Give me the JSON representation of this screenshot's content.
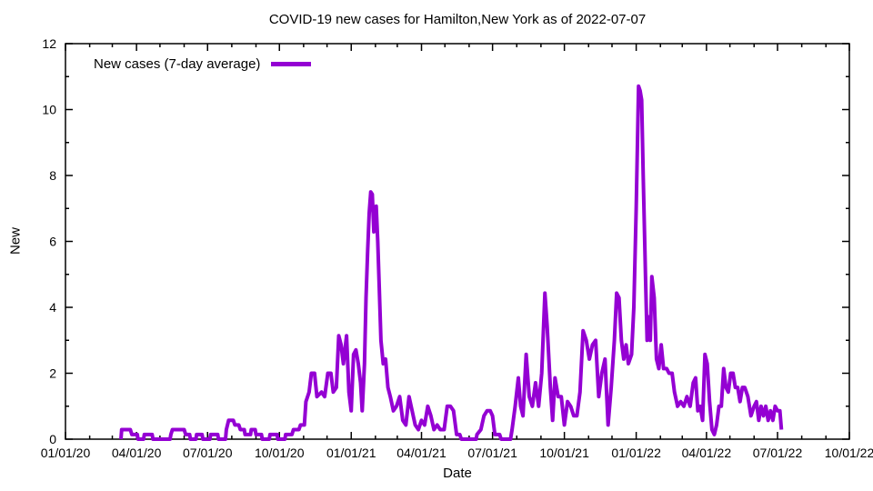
{
  "chart_data": {
    "type": "line",
    "title": "COVID-19 new cases for Hamilton,New York as of 2022-07-07",
    "xlabel": "Date",
    "ylabel": "New",
    "xlim": [
      "2020-01-01",
      "2022-10-01"
    ],
    "ylim": [
      0,
      12
    ],
    "grid": false,
    "legend_position": "top-left-inside",
    "border_color": "#000000",
    "x_ticks": [
      {
        "date": "2020-01-01",
        "label": "01/01/20"
      },
      {
        "date": "2020-04-01",
        "label": "04/01/20"
      },
      {
        "date": "2020-07-01",
        "label": "07/01/20"
      },
      {
        "date": "2020-10-01",
        "label": "10/01/20"
      },
      {
        "date": "2021-01-01",
        "label": "01/01/21"
      },
      {
        "date": "2021-04-01",
        "label": "04/01/21"
      },
      {
        "date": "2021-07-01",
        "label": "07/01/21"
      },
      {
        "date": "2021-10-01",
        "label": "10/01/21"
      },
      {
        "date": "2022-01-01",
        "label": "01/01/22"
      },
      {
        "date": "2022-04-01",
        "label": "04/01/22"
      },
      {
        "date": "2022-07-01",
        "label": "07/01/22"
      },
      {
        "date": "2022-10-01",
        "label": "10/01/22"
      }
    ],
    "y_ticks": [
      {
        "value": 0,
        "label": "0"
      },
      {
        "value": 2,
        "label": "2"
      },
      {
        "value": 4,
        "label": "4"
      },
      {
        "value": 6,
        "label": "6"
      },
      {
        "value": 8,
        "label": "8"
      },
      {
        "value": 10,
        "label": "10"
      },
      {
        "value": 12,
        "label": "12"
      }
    ],
    "y_minor_ticks": [
      1,
      3,
      5,
      7,
      9,
      11
    ],
    "series": [
      {
        "name": "New cases (7-day average)",
        "color": "#9400D3",
        "line_width": 4,
        "points": [
          [
            "2020-03-12",
            0
          ],
          [
            "2020-03-13",
            0.29
          ],
          [
            "2020-03-24",
            0.29
          ],
          [
            "2020-03-26",
            0.14
          ],
          [
            "2020-04-02",
            0.14
          ],
          [
            "2020-04-03",
            0
          ],
          [
            "2020-04-10",
            0
          ],
          [
            "2020-04-11",
            0.14
          ],
          [
            "2020-04-21",
            0.14
          ],
          [
            "2020-04-22",
            0
          ],
          [
            "2020-05-14",
            0
          ],
          [
            "2020-05-15",
            0.14
          ],
          [
            "2020-05-17",
            0.29
          ],
          [
            "2020-06-01",
            0.29
          ],
          [
            "2020-06-03",
            0.14
          ],
          [
            "2020-06-08",
            0.14
          ],
          [
            "2020-06-09",
            0
          ],
          [
            "2020-06-16",
            0
          ],
          [
            "2020-06-17",
            0.14
          ],
          [
            "2020-06-24",
            0.14
          ],
          [
            "2020-06-25",
            0
          ],
          [
            "2020-07-04",
            0
          ],
          [
            "2020-07-05",
            0.14
          ],
          [
            "2020-07-14",
            0.14
          ],
          [
            "2020-07-15",
            0
          ],
          [
            "2020-07-24",
            0
          ],
          [
            "2020-07-25",
            0.29
          ],
          [
            "2020-07-28",
            0.57
          ],
          [
            "2020-08-03",
            0.57
          ],
          [
            "2020-08-05",
            0.43
          ],
          [
            "2020-08-10",
            0.43
          ],
          [
            "2020-08-12",
            0.29
          ],
          [
            "2020-08-17",
            0.29
          ],
          [
            "2020-08-18",
            0.14
          ],
          [
            "2020-08-25",
            0.14
          ],
          [
            "2020-08-26",
            0.29
          ],
          [
            "2020-08-31",
            0.29
          ],
          [
            "2020-09-01",
            0.14
          ],
          [
            "2020-09-08",
            0.14
          ],
          [
            "2020-09-09",
            0
          ],
          [
            "2020-09-18",
            0
          ],
          [
            "2020-09-19",
            0.14
          ],
          [
            "2020-09-28",
            0.14
          ],
          [
            "2020-09-29",
            0
          ],
          [
            "2020-10-08",
            0
          ],
          [
            "2020-10-09",
            0.14
          ],
          [
            "2020-10-17",
            0.14
          ],
          [
            "2020-10-19",
            0.29
          ],
          [
            "2020-10-26",
            0.29
          ],
          [
            "2020-10-28",
            0.43
          ],
          [
            "2020-11-02",
            0.43
          ],
          [
            "2020-11-04",
            1.14
          ],
          [
            "2020-11-08",
            1.43
          ],
          [
            "2020-11-11",
            2.0
          ],
          [
            "2020-11-15",
            2.0
          ],
          [
            "2020-11-18",
            1.29
          ],
          [
            "2020-11-24",
            1.43
          ],
          [
            "2020-11-28",
            1.29
          ],
          [
            "2020-12-02",
            2.0
          ],
          [
            "2020-12-06",
            2.0
          ],
          [
            "2020-12-09",
            1.43
          ],
          [
            "2020-12-13",
            1.57
          ],
          [
            "2020-12-16",
            3.14
          ],
          [
            "2020-12-19",
            2.86
          ],
          [
            "2020-12-22",
            2.29
          ],
          [
            "2020-12-26",
            3.14
          ],
          [
            "2020-12-29",
            1.43
          ],
          [
            "2021-01-01",
            0.86
          ],
          [
            "2021-01-04",
            2.57
          ],
          [
            "2021-01-07",
            2.71
          ],
          [
            "2021-01-10",
            2.29
          ],
          [
            "2021-01-13",
            1.71
          ],
          [
            "2021-01-15",
            0.86
          ],
          [
            "2021-01-18",
            2.29
          ],
          [
            "2021-01-20",
            4.29
          ],
          [
            "2021-01-22",
            5.71
          ],
          [
            "2021-01-24",
            6.86
          ],
          [
            "2021-01-26",
            7.5
          ],
          [
            "2021-01-28",
            7.43
          ],
          [
            "2021-01-30",
            6.29
          ],
          [
            "2021-02-02",
            7.07
          ],
          [
            "2021-02-04",
            6.0
          ],
          [
            "2021-02-06",
            4.57
          ],
          [
            "2021-02-08",
            3.0
          ],
          [
            "2021-02-11",
            2.29
          ],
          [
            "2021-02-14",
            2.43
          ],
          [
            "2021-02-17",
            1.57
          ],
          [
            "2021-02-20",
            1.29
          ],
          [
            "2021-02-24",
            0.86
          ],
          [
            "2021-02-28",
            1.0
          ],
          [
            "2021-03-04",
            1.29
          ],
          [
            "2021-03-08",
            0.57
          ],
          [
            "2021-03-12",
            0.43
          ],
          [
            "2021-03-16",
            1.29
          ],
          [
            "2021-03-20",
            0.86
          ],
          [
            "2021-03-24",
            0.43
          ],
          [
            "2021-03-28",
            0.29
          ],
          [
            "2021-04-01",
            0.57
          ],
          [
            "2021-04-05",
            0.43
          ],
          [
            "2021-04-09",
            1.0
          ],
          [
            "2021-04-13",
            0.71
          ],
          [
            "2021-04-17",
            0.29
          ],
          [
            "2021-04-21",
            0.43
          ],
          [
            "2021-04-25",
            0.29
          ],
          [
            "2021-04-30",
            0.29
          ],
          [
            "2021-05-04",
            1.0
          ],
          [
            "2021-05-08",
            1.0
          ],
          [
            "2021-05-12",
            0.86
          ],
          [
            "2021-05-16",
            0.14
          ],
          [
            "2021-05-20",
            0.14
          ],
          [
            "2021-05-22",
            0
          ],
          [
            "2021-06-10",
            0
          ],
          [
            "2021-06-11",
            0.14
          ],
          [
            "2021-06-16",
            0.29
          ],
          [
            "2021-06-20",
            0.71
          ],
          [
            "2021-06-24",
            0.86
          ],
          [
            "2021-06-28",
            0.86
          ],
          [
            "2021-07-01",
            0.71
          ],
          [
            "2021-07-04",
            0.14
          ],
          [
            "2021-07-10",
            0.14
          ],
          [
            "2021-07-12",
            0
          ],
          [
            "2021-07-24",
            0
          ],
          [
            "2021-07-26",
            0.29
          ],
          [
            "2021-07-30",
            1.0
          ],
          [
            "2021-08-03",
            1.86
          ],
          [
            "2021-08-06",
            1.0
          ],
          [
            "2021-08-09",
            0.71
          ],
          [
            "2021-08-13",
            2.57
          ],
          [
            "2021-08-17",
            1.29
          ],
          [
            "2021-08-21",
            1.0
          ],
          [
            "2021-08-25",
            1.71
          ],
          [
            "2021-08-29",
            1.0
          ],
          [
            "2021-09-02",
            2.0
          ],
          [
            "2021-09-06",
            4.43
          ],
          [
            "2021-09-09",
            3.43
          ],
          [
            "2021-09-13",
            1.57
          ],
          [
            "2021-09-16",
            0.57
          ],
          [
            "2021-09-19",
            1.86
          ],
          [
            "2021-09-23",
            1.29
          ],
          [
            "2021-09-27",
            1.29
          ],
          [
            "2021-10-01",
            0.43
          ],
          [
            "2021-10-05",
            1.14
          ],
          [
            "2021-10-09",
            1.0
          ],
          [
            "2021-10-13",
            0.71
          ],
          [
            "2021-10-17",
            0.71
          ],
          [
            "2021-10-21",
            1.43
          ],
          [
            "2021-10-25",
            3.29
          ],
          [
            "2021-10-29",
            3.0
          ],
          [
            "2021-11-02",
            2.43
          ],
          [
            "2021-11-06",
            2.86
          ],
          [
            "2021-11-10",
            3.0
          ],
          [
            "2021-11-14",
            1.29
          ],
          [
            "2021-11-18",
            2.0
          ],
          [
            "2021-11-22",
            2.43
          ],
          [
            "2021-11-26",
            0.43
          ],
          [
            "2021-11-30",
            1.57
          ],
          [
            "2021-12-04",
            3.0
          ],
          [
            "2021-12-07",
            4.43
          ],
          [
            "2021-12-10",
            4.29
          ],
          [
            "2021-12-13",
            3.0
          ],
          [
            "2021-12-16",
            2.43
          ],
          [
            "2021-12-19",
            2.86
          ],
          [
            "2021-12-22",
            2.29
          ],
          [
            "2021-12-26",
            2.57
          ],
          [
            "2021-12-29",
            4.0
          ],
          [
            "2022-01-01",
            7.0
          ],
          [
            "2022-01-04",
            10.71
          ],
          [
            "2022-01-06",
            10.57
          ],
          [
            "2022-01-08",
            10.29
          ],
          [
            "2022-01-10",
            8.0
          ],
          [
            "2022-01-13",
            4.86
          ],
          [
            "2022-01-15",
            3.0
          ],
          [
            "2022-01-17",
            3.71
          ],
          [
            "2022-01-19",
            3.0
          ],
          [
            "2022-01-21",
            4.93
          ],
          [
            "2022-01-24",
            4.29
          ],
          [
            "2022-01-27",
            2.43
          ],
          [
            "2022-01-30",
            2.14
          ],
          [
            "2022-02-02",
            2.86
          ],
          [
            "2022-02-05",
            2.14
          ],
          [
            "2022-02-09",
            2.14
          ],
          [
            "2022-02-12",
            2.0
          ],
          [
            "2022-02-16",
            2.0
          ],
          [
            "2022-02-19",
            1.43
          ],
          [
            "2022-02-23",
            1.0
          ],
          [
            "2022-02-27",
            1.14
          ],
          [
            "2022-03-03",
            1.0
          ],
          [
            "2022-03-07",
            1.29
          ],
          [
            "2022-03-11",
            1.0
          ],
          [
            "2022-03-15",
            1.71
          ],
          [
            "2022-03-18",
            1.86
          ],
          [
            "2022-03-21",
            0.86
          ],
          [
            "2022-03-24",
            1.0
          ],
          [
            "2022-03-27",
            0.57
          ],
          [
            "2022-03-30",
            2.57
          ],
          [
            "2022-04-02",
            2.29
          ],
          [
            "2022-04-05",
            1.14
          ],
          [
            "2022-04-08",
            0.29
          ],
          [
            "2022-04-11",
            0.14
          ],
          [
            "2022-04-14",
            0.43
          ],
          [
            "2022-04-17",
            1.0
          ],
          [
            "2022-04-20",
            1.0
          ],
          [
            "2022-04-23",
            2.14
          ],
          [
            "2022-04-26",
            1.57
          ],
          [
            "2022-04-29",
            1.43
          ],
          [
            "2022-05-02",
            2.0
          ],
          [
            "2022-05-05",
            2.0
          ],
          [
            "2022-05-08",
            1.57
          ],
          [
            "2022-05-11",
            1.57
          ],
          [
            "2022-05-14",
            1.14
          ],
          [
            "2022-05-17",
            1.57
          ],
          [
            "2022-05-20",
            1.57
          ],
          [
            "2022-05-24",
            1.29
          ],
          [
            "2022-05-28",
            0.71
          ],
          [
            "2022-06-01",
            1.0
          ],
          [
            "2022-06-04",
            1.14
          ],
          [
            "2022-06-07",
            0.57
          ],
          [
            "2022-06-10",
            1.0
          ],
          [
            "2022-06-13",
            0.71
          ],
          [
            "2022-06-16",
            1.0
          ],
          [
            "2022-06-19",
            0.57
          ],
          [
            "2022-06-22",
            0.86
          ],
          [
            "2022-06-25",
            0.57
          ],
          [
            "2022-06-28",
            1.0
          ],
          [
            "2022-07-01",
            0.86
          ],
          [
            "2022-07-04",
            0.86
          ],
          [
            "2022-07-06",
            0.29
          ]
        ]
      }
    ]
  }
}
